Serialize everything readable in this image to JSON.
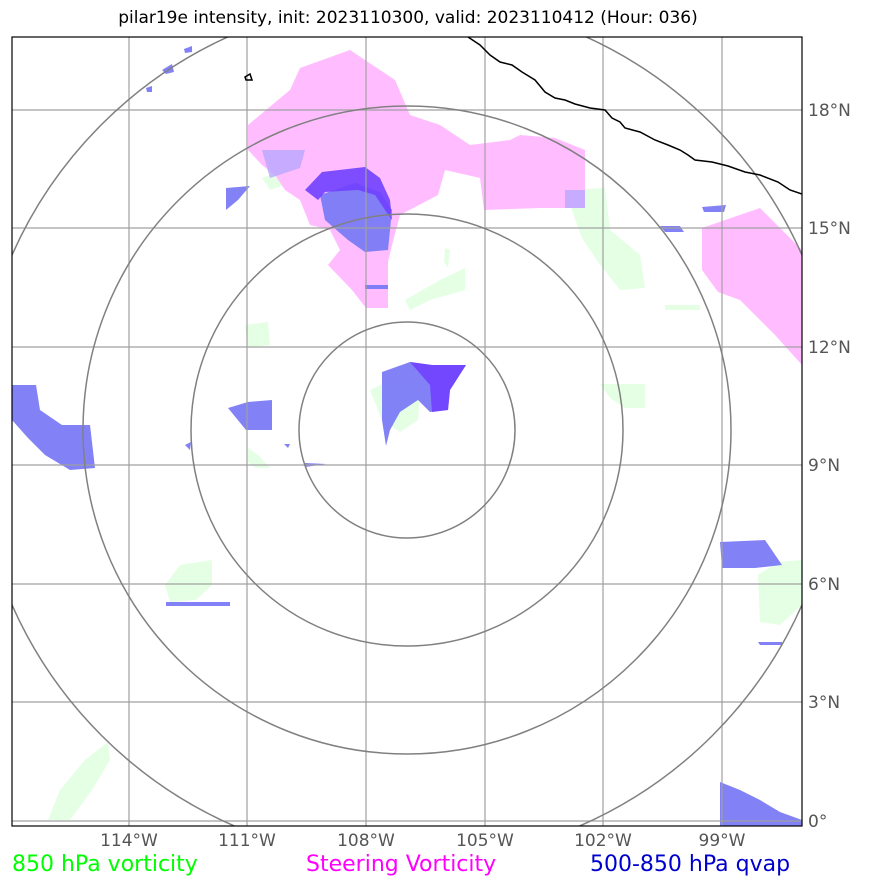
{
  "title": "pilar19e intensity, init: 2023110300, valid: 2023110412 (Hour: 036)",
  "legend": {
    "vort850": {
      "label": "850 hPa vorticity",
      "color": "#00ff00"
    },
    "steering": {
      "label": "Steering Vorticity",
      "color": "#ff00ff"
    },
    "qvap": {
      "label": "500-850 hPa qvap",
      "color": "#0000cc"
    }
  },
  "axes": {
    "longitude_ticks": [
      "114°W",
      "111°W",
      "108°W",
      "105°W",
      "102°W",
      "99°W"
    ],
    "latitude_ticks": [
      "18°N",
      "15°N",
      "12°N",
      "9°N",
      "6°N",
      "3°N",
      "0°"
    ]
  },
  "fill_colors": {
    "vort850": "#e4ffe4",
    "steering": "#ffbdff",
    "qvap": "#7b7bf5",
    "qvap_dark": "#7040ff",
    "overlap": "#b8a6ff"
  },
  "map": {
    "lon_range": [
      -117,
      -97
    ],
    "lat_range": [
      -0.1,
      19.8
    ],
    "center": {
      "lon": -106.8,
      "lat": 10.0
    },
    "range_rings_count": 4,
    "coastline_color": "#000000",
    "grid_color": "#a0a0a0"
  }
}
